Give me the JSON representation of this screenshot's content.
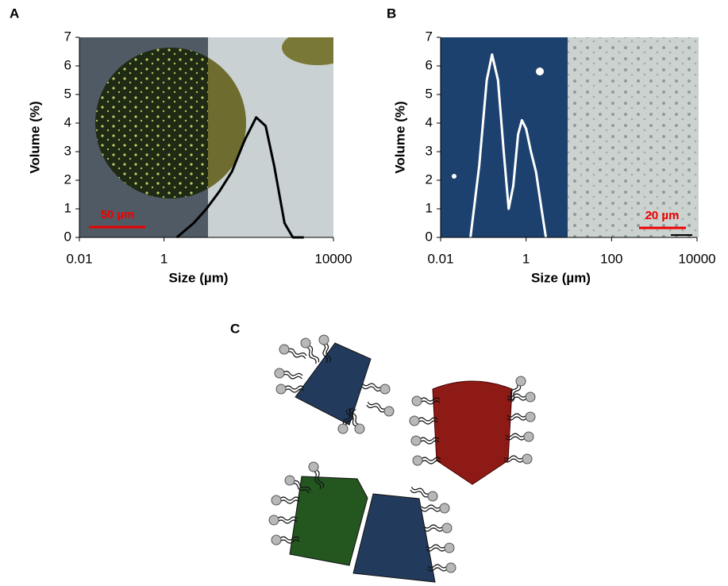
{
  "chart_data": [
    {
      "type": "line",
      "panel": "A",
      "xlabel": "Size (µm)",
      "ylabel": "Volume (%)",
      "scale_bar": "50 µm",
      "x": [
        2,
        5,
        10,
        20,
        40,
        80,
        150,
        250,
        400,
        700,
        1100,
        2000
      ],
      "series": [
        {
          "color": "#000000",
          "values": [
            0,
            0.5,
            1.0,
            1.6,
            2.3,
            3.4,
            4.2,
            3.9,
            2.5,
            0.5,
            0,
            0
          ]
        }
      ],
      "xscale": "log",
      "xlim": [
        0.01,
        10000
      ],
      "ylim": [
        0,
        7
      ],
      "xticks": [
        0.01,
        1,
        10000
      ],
      "yticks": [
        0,
        1,
        2,
        3,
        4,
        5,
        6,
        7
      ]
    },
    {
      "type": "line",
      "panel": "B",
      "xlabel": "Size (µm)",
      "ylabel": "Volume (%)",
      "scale_bar": "20 µm",
      "x": [
        0.05,
        0.08,
        0.12,
        0.16,
        0.22,
        0.3,
        0.39,
        0.5,
        0.65,
        0.8,
        1.0,
        1.3,
        1.7,
        2.3,
        2.9
      ],
      "series": [
        {
          "color": "#ffffff",
          "values": [
            0,
            2.5,
            5.5,
            6.4,
            5.5,
            3,
            1.0,
            1.8,
            3.6,
            4.1,
            3.8,
            3.0,
            2.3,
            1.0,
            0
          ]
        }
      ],
      "xscale": "log",
      "xlim": [
        0.01,
        10000
      ],
      "ylim": [
        0,
        7
      ],
      "xticks": [
        0.01,
        1,
        100,
        10000
      ],
      "yticks": [
        0,
        1,
        2,
        3,
        4,
        5,
        6,
        7
      ]
    }
  ],
  "diagram": {
    "label": "C"
  }
}
